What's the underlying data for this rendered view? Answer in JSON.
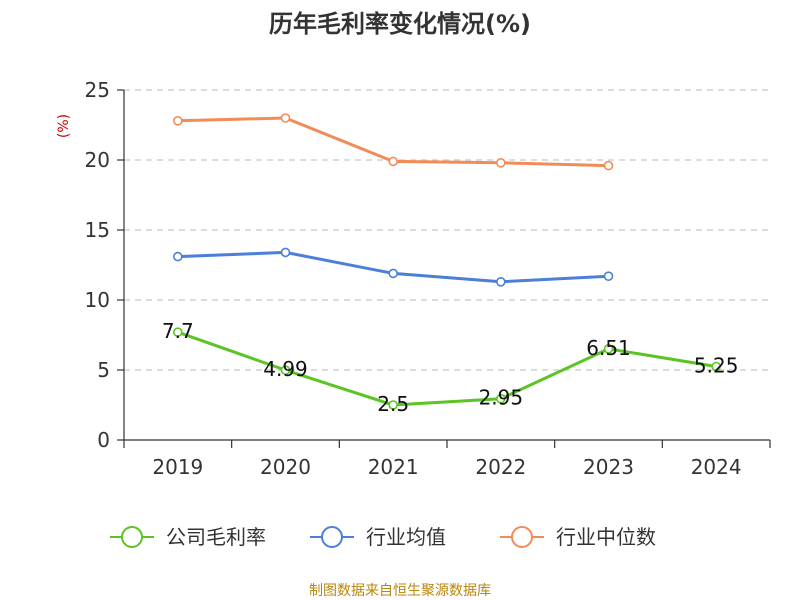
{
  "chart_data": {
    "type": "line",
    "title": "历年毛利率变化情况(%)",
    "ylabel": "(%)",
    "xlabel": "",
    "categories": [
      "2019",
      "2020",
      "2021",
      "2022",
      "2023",
      "2024"
    ],
    "ylim": [
      0,
      25
    ],
    "yticks": [
      0,
      5,
      10,
      15,
      20,
      25
    ],
    "grid": true,
    "legend_position": "bottom",
    "series": [
      {
        "name": "公司毛利率",
        "color": "#5cc424",
        "values": [
          7.7,
          4.99,
          2.5,
          2.95,
          6.51,
          5.25
        ],
        "labels": [
          "7.7",
          "4.99",
          "2.5",
          "2.95",
          "6.51",
          "5.25"
        ]
      },
      {
        "name": "行业均值",
        "color": "#4b7fd8",
        "values": [
          13.1,
          13.4,
          11.9,
          11.3,
          11.7,
          null
        ]
      },
      {
        "name": "行业中位数",
        "color": "#f28c57",
        "values": [
          22.8,
          23.0,
          19.9,
          19.8,
          19.6,
          null
        ]
      }
    ]
  },
  "footer": {
    "source": "制图数据来自恒生聚源数据库"
  }
}
